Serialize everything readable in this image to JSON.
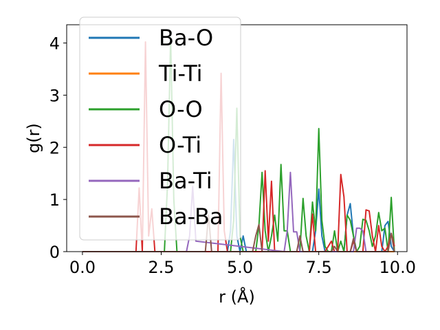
{
  "chart_data": {
    "type": "line",
    "xlabel": "r (Å)",
    "ylabel": "g(r)",
    "xlim": [
      -0.5,
      10.3
    ],
    "ylim": [
      0,
      4.35
    ],
    "xticks": [
      0.0,
      2.5,
      5.0,
      7.5,
      10.0
    ],
    "xtick_labels": [
      "0.0",
      "2.5",
      "5.0",
      "7.5",
      "10.0"
    ],
    "yticks": [
      0,
      1,
      2,
      3,
      4
    ],
    "ytick_labels": [
      "0",
      "1",
      "2",
      "3",
      "4"
    ],
    "grid": false,
    "legend_position": "top-left",
    "series": [
      {
        "name": "Ba-O",
        "color": "#1f77b4",
        "x": [
          0,
          2.6,
          2.7,
          2.8,
          2.9,
          3.0,
          4.6,
          4.7,
          4.8,
          4.9,
          5.0,
          5.1,
          5.2,
          5.3,
          7.3,
          7.4,
          7.5,
          7.6,
          7.7,
          7.8,
          8.3,
          8.4,
          8.5,
          8.6,
          8.7,
          9.5,
          9.6,
          9.7,
          9.8,
          9.9
        ],
        "y": [
          0,
          0,
          0,
          0,
          0,
          0,
          0,
          0.4,
          2.15,
          0.3,
          0,
          0.3,
          0,
          0,
          0,
          0.4,
          1.2,
          0.3,
          0,
          0,
          0,
          0.7,
          0.92,
          0.3,
          0,
          0,
          0.5,
          0.58,
          0.1,
          0
        ]
      },
      {
        "name": "Ti-Ti",
        "color": "#ff7f0e",
        "x": [
          0,
          3.9,
          4.0,
          4.1,
          9.9
        ],
        "y": [
          0,
          0,
          0,
          0,
          0
        ]
      },
      {
        "name": "O-O",
        "color": "#2ca02c",
        "x": [
          0,
          2.6,
          2.7,
          2.8,
          2.9,
          3.0,
          4.7,
          4.8,
          4.9,
          5.0,
          5.1,
          5.5,
          5.6,
          5.7,
          5.8,
          5.9,
          6.0,
          6.1,
          6.2,
          6.3,
          6.4,
          6.5,
          6.6,
          6.7,
          6.8,
          6.9,
          7.0,
          7.1,
          7.2,
          7.3,
          7.4,
          7.5,
          7.6,
          7.7,
          7.8,
          7.9,
          8.0,
          8.1,
          8.2,
          8.3,
          8.4,
          8.5,
          8.6,
          8.7,
          8.8,
          8.9,
          9.0,
          9.1,
          9.2,
          9.3,
          9.4,
          9.5,
          9.6,
          9.7,
          9.8,
          9.9
        ],
        "y": [
          0,
          0,
          1.3,
          4.1,
          1.0,
          0,
          0,
          0.6,
          2.75,
          0.3,
          0,
          0,
          0.5,
          1.52,
          0.4,
          0,
          0.3,
          0.7,
          0.2,
          1.67,
          0.4,
          0.4,
          0,
          0,
          0,
          0,
          1.02,
          0.3,
          0,
          0.95,
          0.4,
          2.36,
          0.6,
          0.1,
          0,
          0,
          0.4,
          0,
          0.2,
          0,
          0.7,
          0.6,
          0.3,
          0,
          0.1,
          0.62,
          0.6,
          0.4,
          0.1,
          0.3,
          0.75,
          0.4,
          0.45,
          0,
          1.04,
          0
        ]
      },
      {
        "name": "O-Ti",
        "color": "#d62728",
        "x": [
          0,
          1.7,
          1.8,
          1.9,
          2.0,
          2.1,
          2.2,
          2.3,
          4.3,
          4.4,
          4.5,
          4.6,
          5.7,
          5.8,
          5.9,
          6.0,
          6.1,
          6.2,
          6.3,
          6.4,
          6.5,
          6.6,
          7.2,
          7.3,
          7.4,
          7.5,
          7.6,
          7.7,
          7.9,
          8.0,
          8.1,
          8.2,
          8.3,
          8.4,
          8.5,
          8.6,
          8.7,
          8.8,
          8.9,
          9.0,
          9.1,
          9.2,
          9.3,
          9.4,
          9.5,
          9.6,
          9.7,
          9.8,
          9.9
        ],
        "y": [
          0,
          0,
          1.22,
          0,
          4.02,
          0.3,
          0.82,
          0,
          0,
          3.42,
          0.4,
          0,
          0,
          1.55,
          0.2,
          1.35,
          0,
          0,
          0,
          0,
          0,
          0,
          0,
          0.72,
          0,
          0,
          0,
          0,
          0.2,
          0,
          0,
          1.48,
          1.05,
          0,
          0,
          0.2,
          0,
          0,
          0,
          0.8,
          0.78,
          0.3,
          0,
          0.5,
          0.1,
          0,
          0.1,
          0.35,
          0.1
        ]
      },
      {
        "name": "Ba-Ti",
        "color": "#9467bd",
        "x": [
          0,
          3.3,
          3.4,
          3.5,
          3.6,
          6.4,
          6.5,
          6.6,
          6.7,
          6.8,
          6.9,
          8.6,
          8.7,
          8.8,
          8.9,
          9.0
        ],
        "y": [
          0,
          0,
          0.3,
          1.25,
          0.2,
          0,
          0.4,
          1.52,
          0.38,
          0.38,
          0,
          0,
          0.45,
          0.45,
          0.4,
          0
        ]
      },
      {
        "name": "Ba-Ba",
        "color": "#8c564b",
        "x": [
          0,
          3.9,
          4.0,
          4.1,
          5.4,
          5.5,
          5.6,
          5.7,
          5.8,
          6.8,
          6.9,
          7.0,
          7.1,
          7.9,
          8.0,
          8.1,
          8.5,
          8.6,
          8.7,
          8.8,
          9.7,
          9.8,
          9.9
        ],
        "y": [
          0,
          0,
          0.7,
          0,
          0,
          0.3,
          0.52,
          0,
          0,
          0,
          0.3,
          0,
          0,
          0,
          0.1,
          0,
          0,
          0.25,
          0,
          0,
          0,
          0.35,
          0
        ]
      }
    ]
  }
}
